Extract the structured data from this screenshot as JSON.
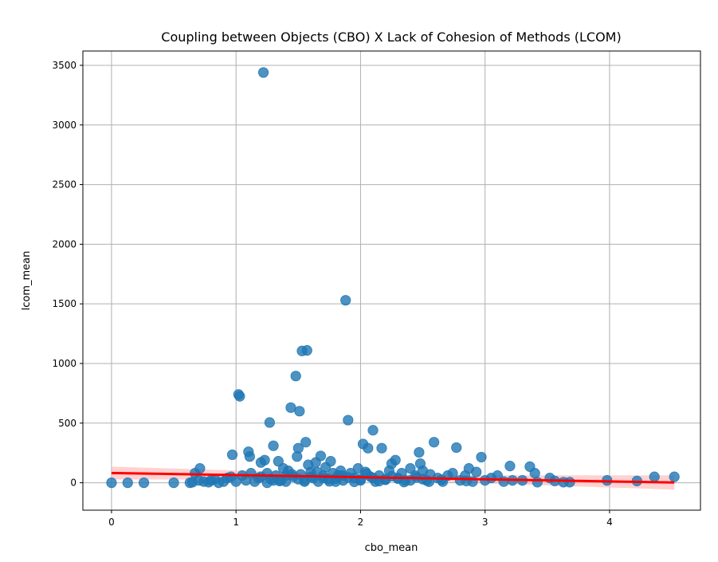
{
  "chart_data": {
    "type": "scatter",
    "title": "Coupling between Objects (CBO) X Lack of Cohesion of Methods (LCOM)",
    "xlabel": "cbo_mean",
    "ylabel": "lcom_mean",
    "xlim": [
      -0.23,
      4.73
    ],
    "ylim": [
      -230,
      3620
    ],
    "xticks": [
      0,
      1,
      2,
      3,
      4
    ],
    "yticks": [
      0,
      500,
      1000,
      1500,
      2000,
      2500,
      3000,
      3500
    ],
    "grid": true,
    "colors": {
      "points": "#1f77b4",
      "regression": "#ff0000",
      "ci_band": "#ffb3b3"
    },
    "series": [
      {
        "points": [
          [
            0.0,
            0
          ],
          [
            0.13,
            0
          ],
          [
            0.26,
            0
          ],
          [
            0.5,
            0
          ],
          [
            0.63,
            0
          ],
          [
            0.65,
            5
          ],
          [
            0.67,
            80
          ],
          [
            0.7,
            20
          ],
          [
            0.71,
            120
          ],
          [
            0.74,
            10
          ],
          [
            0.78,
            5
          ],
          [
            0.8,
            20
          ],
          [
            0.83,
            30
          ],
          [
            0.86,
            0
          ],
          [
            0.9,
            10
          ],
          [
            0.93,
            40
          ],
          [
            0.96,
            50
          ],
          [
            0.97,
            235
          ],
          [
            1.0,
            10
          ],
          [
            1.02,
            740
          ],
          [
            1.03,
            725
          ],
          [
            1.05,
            60
          ],
          [
            1.08,
            20
          ],
          [
            1.1,
            260
          ],
          [
            1.11,
            220
          ],
          [
            1.12,
            80
          ],
          [
            1.15,
            10
          ],
          [
            1.18,
            40
          ],
          [
            1.2,
            170
          ],
          [
            1.22,
            3440
          ],
          [
            1.23,
            190
          ],
          [
            1.25,
            0
          ],
          [
            1.27,
            505
          ],
          [
            1.28,
            30
          ],
          [
            1.3,
            310
          ],
          [
            1.32,
            60
          ],
          [
            1.34,
            180
          ],
          [
            1.36,
            20
          ],
          [
            1.38,
            120
          ],
          [
            1.4,
            10
          ],
          [
            1.42,
            100
          ],
          [
            1.44,
            630
          ],
          [
            1.46,
            50
          ],
          [
            1.48,
            895
          ],
          [
            1.49,
            220
          ],
          [
            1.5,
            290
          ],
          [
            1.51,
            600
          ],
          [
            1.52,
            70
          ],
          [
            1.53,
            1105
          ],
          [
            1.55,
            20
          ],
          [
            1.56,
            340
          ],
          [
            1.57,
            1110
          ],
          [
            1.58,
            150
          ],
          [
            1.6,
            90
          ],
          [
            1.62,
            40
          ],
          [
            1.64,
            170
          ],
          [
            1.66,
            10
          ],
          [
            1.68,
            225
          ],
          [
            1.7,
            60
          ],
          [
            1.72,
            130
          ],
          [
            1.74,
            30
          ],
          [
            1.76,
            180
          ],
          [
            1.78,
            80
          ],
          [
            1.8,
            10
          ],
          [
            1.82,
            60
          ],
          [
            1.84,
            100
          ],
          [
            1.86,
            20
          ],
          [
            1.88,
            1530
          ],
          [
            1.9,
            525
          ],
          [
            1.92,
            80
          ],
          [
            1.95,
            40
          ],
          [
            1.98,
            120
          ],
          [
            2.0,
            20
          ],
          [
            2.02,
            325
          ],
          [
            2.04,
            90
          ],
          [
            2.06,
            290
          ],
          [
            2.08,
            50
          ],
          [
            2.1,
            440
          ],
          [
            2.12,
            10
          ],
          [
            2.15,
            60
          ],
          [
            2.17,
            290
          ],
          [
            2.2,
            30
          ],
          [
            2.23,
            100
          ],
          [
            2.25,
            160
          ],
          [
            2.28,
            190
          ],
          [
            2.3,
            40
          ],
          [
            2.33,
            80
          ],
          [
            2.36,
            20
          ],
          [
            2.4,
            120
          ],
          [
            2.44,
            60
          ],
          [
            2.47,
            255
          ],
          [
            2.48,
            160
          ],
          [
            2.5,
            100
          ],
          [
            2.53,
            20
          ],
          [
            2.56,
            70
          ],
          [
            2.59,
            340
          ],
          [
            2.62,
            40
          ],
          [
            2.66,
            10
          ],
          [
            2.7,
            60
          ],
          [
            2.74,
            80
          ],
          [
            2.77,
            295
          ],
          [
            2.8,
            20
          ],
          [
            2.84,
            60
          ],
          [
            2.87,
            120
          ],
          [
            2.9,
            10
          ],
          [
            2.93,
            90
          ],
          [
            2.97,
            215
          ],
          [
            3.0,
            20
          ],
          [
            3.05,
            40
          ],
          [
            3.1,
            60
          ],
          [
            3.15,
            10
          ],
          [
            3.2,
            140
          ],
          [
            3.22,
            20
          ],
          [
            3.3,
            20
          ],
          [
            3.36,
            135
          ],
          [
            3.4,
            80
          ],
          [
            3.42,
            5
          ],
          [
            3.52,
            40
          ],
          [
            3.56,
            15
          ],
          [
            3.63,
            5
          ],
          [
            3.68,
            5
          ],
          [
            3.98,
            20
          ],
          [
            4.22,
            15
          ],
          [
            4.36,
            50
          ],
          [
            4.52,
            50
          ],
          [
            1.2,
            50
          ],
          [
            1.3,
            20
          ],
          [
            1.4,
            60
          ],
          [
            1.5,
            30
          ],
          [
            1.6,
            50
          ],
          [
            1.7,
            40
          ],
          [
            1.8,
            35
          ],
          [
            1.9,
            45
          ],
          [
            2.0,
            30
          ],
          [
            2.1,
            40
          ],
          [
            2.2,
            25
          ],
          [
            2.3,
            35
          ],
          [
            2.4,
            20
          ],
          [
            2.5,
            30
          ],
          [
            1.25,
            80
          ],
          [
            1.45,
            70
          ],
          [
            1.65,
            90
          ],
          [
            1.85,
            60
          ],
          [
            2.05,
            75
          ],
          [
            2.25,
            55
          ],
          [
            2.45,
            45
          ],
          [
            1.35,
            15
          ],
          [
            1.55,
            10
          ],
          [
            1.75,
            12
          ],
          [
            1.95,
            8
          ],
          [
            2.15,
            14
          ],
          [
            2.35,
            6
          ],
          [
            2.55,
            9
          ],
          [
            2.65,
            25
          ],
          [
            2.85,
            15
          ]
        ]
      }
    ],
    "regression": {
      "x": [
        0.0,
        4.52
      ],
      "y": [
        82,
        2
      ]
    }
  }
}
